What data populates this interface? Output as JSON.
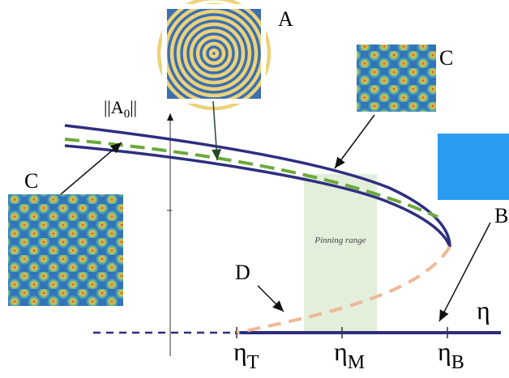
{
  "y_axis_label": {
    "main": "||A",
    "sub": "0",
    "end": "||"
  },
  "x_axis_label": "η",
  "ticks": [
    {
      "symbol": "η",
      "sub": "T"
    },
    {
      "symbol": "η",
      "sub": "M"
    },
    {
      "symbol": "η",
      "sub": "B"
    }
  ],
  "region_label": "Pinning range",
  "callouts": {
    "a": "A",
    "c_top": "C",
    "c_left": "C",
    "b": "B",
    "d": "D"
  }
}
